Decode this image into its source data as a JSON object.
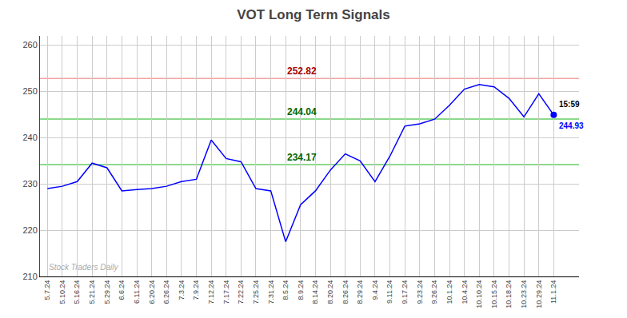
{
  "chart_data": {
    "type": "line",
    "title": "VOT Long Term Signals",
    "categories": [
      "5.7.24",
      "5.10.24",
      "5.16.24",
      "5.21.24",
      "5.29.24",
      "6.6.24",
      "6.11.24",
      "6.20.24",
      "6.26.24",
      "7.3.24",
      "7.9.24",
      "7.12.24",
      "7.17.24",
      "7.22.24",
      "7.25.24",
      "7.31.24",
      "8.5.24",
      "8.9.24",
      "8.14.24",
      "8.20.24",
      "8.26.24",
      "8.29.24",
      "9.4.24",
      "9.11.24",
      "9.17.24",
      "9.23.24",
      "9.26.24",
      "10.1.24",
      "10.4.24",
      "10.10.24",
      "10.15.24",
      "10.18.24",
      "10.23.24",
      "10.29.24",
      "11.1.24"
    ],
    "values": [
      229.0,
      229.5,
      230.5,
      234.5,
      233.5,
      228.5,
      228.8,
      229.0,
      229.5,
      230.5,
      231.0,
      239.5,
      235.5,
      234.8,
      229.0,
      228.5,
      217.5,
      225.5,
      228.5,
      233.0,
      236.5,
      235.0,
      230.5,
      236.0,
      242.5,
      243.0,
      244.0,
      247.0,
      250.5,
      251.5,
      251.0,
      248.5,
      244.5,
      249.5,
      244.93
    ],
    "color": "blue",
    "ylim": [
      210,
      262
    ],
    "yticks": [
      210,
      220,
      230,
      240,
      250,
      260
    ],
    "grid": true,
    "hlines": [
      {
        "value": 252.82,
        "label": "252.82",
        "color": "#f5a0a0",
        "label_color": "#aa0000"
      },
      {
        "value": 244.04,
        "label": "244.04",
        "color": "#66cc66",
        "label_color": "#006600"
      },
      {
        "value": 234.17,
        "label": "234.17",
        "color": "#66cc66",
        "label_color": "#006600"
      }
    ],
    "last_point": {
      "label": "15:59",
      "value": 244.93,
      "value_label": "244.93",
      "color": "blue"
    },
    "watermark": {
      "text": "Stock Traders Daily",
      "color": "#aaaaaa"
    }
  }
}
